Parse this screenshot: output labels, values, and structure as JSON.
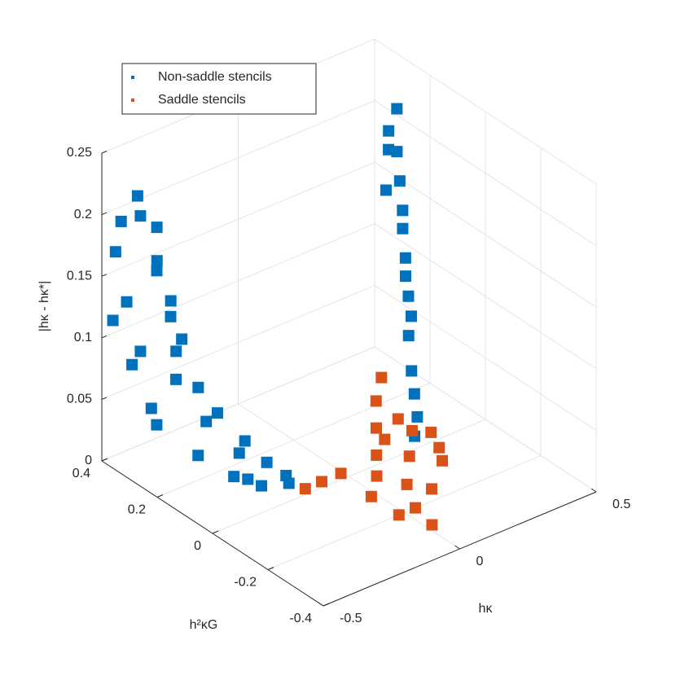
{
  "chart_data": {
    "type": "scatter3d",
    "xlabel": "hκ",
    "ylabel": "h²κG",
    "zlabel": "|hκ - hκ*|",
    "xlim": [
      -0.5,
      0.5
    ],
    "xticks": [
      -0.5,
      0,
      0.5
    ],
    "ylim": [
      -0.4,
      0.4
    ],
    "yticks": [
      -0.4,
      -0.2,
      0,
      0.2,
      0.4
    ],
    "zlim": [
      0,
      0.25
    ],
    "zticks": [
      0,
      0.05,
      0.1,
      0.15,
      0.2,
      0.25
    ],
    "grid": true,
    "legend": "upper left",
    "series": [
      {
        "name": "Non-saddle stencils",
        "color": "#0072BD",
        "x": [
          -0.48,
          -0.46,
          -0.44,
          -0.42,
          -0.47,
          -0.49,
          -0.5,
          -0.45,
          -0.43,
          -0.46,
          -0.4,
          -0.41,
          -0.38,
          -0.44,
          -0.37,
          -0.35,
          -0.42,
          -0.33,
          -0.3,
          -0.38,
          -0.28,
          -0.32,
          -0.25,
          -0.27,
          -0.22,
          -0.2,
          -0.18,
          -0.3,
          -0.35,
          -0.4,
          0.48,
          0.47,
          0.46,
          0.45,
          0.44,
          0.42,
          0.41,
          0.39,
          0.37,
          0.35,
          0.32,
          0.29,
          0.26,
          0.23,
          0.2,
          0.49,
          0.43
        ],
        "y": [
          0.35,
          0.3,
          0.33,
          0.28,
          0.38,
          0.32,
          0.36,
          0.25,
          0.22,
          0.3,
          0.3,
          0.2,
          0.25,
          0.35,
          0.18,
          0.28,
          0.3,
          0.15,
          0.22,
          0.32,
          0.1,
          0.05,
          0.15,
          0.05,
          0.08,
          0.02,
          0.05,
          0.12,
          0.2,
          0.25,
          0.3,
          0.32,
          0.28,
          0.26,
          0.24,
          0.22,
          0.2,
          0.18,
          0.15,
          0.12,
          0.1,
          0.06,
          0.02,
          -0.02,
          -0.04,
          0.34,
          0.29
        ],
        "z": [
          0.2,
          0.21,
          0.22,
          0.2,
          0.17,
          0.14,
          0.12,
          0.18,
          0.15,
          0.1,
          0.16,
          0.12,
          0.1,
          0.08,
          0.08,
          0.07,
          0.05,
          0.06,
          0.04,
          0.03,
          0.04,
          0.02,
          0.02,
          0.01,
          0.02,
          0.01,
          0.01,
          0.01,
          0.02,
          0.13,
          0.21,
          0.19,
          0.18,
          0.16,
          0.14,
          0.13,
          0.11,
          0.1,
          0.09,
          0.08,
          0.07,
          0.05,
          0.04,
          0.03,
          0.02,
          0.17,
          0.15
        ]
      },
      {
        "name": "Saddle stencils",
        "color": "#D95319",
        "x": [
          0.2,
          0.15,
          0.1,
          0.05,
          0,
          -0.05,
          -0.1,
          -0.14,
          0.18,
          0.12,
          0.06,
          0.02,
          0.02,
          -0.04,
          0.1,
          0.25,
          0.3,
          0.15,
          0.08,
          -0.02,
          0.22
        ],
        "y": [
          0.08,
          0.05,
          0,
          -0.05,
          -0.1,
          -0.02,
          0,
          0.02,
          0,
          -0.1,
          -0.15,
          -0.22,
          -0.28,
          -0.12,
          -0.2,
          -0.05,
          -0.03,
          -0.08,
          -0.05,
          -0.2,
          -0.12
        ],
        "z": [
          0.05,
          0.04,
          0.03,
          0.02,
          0.015,
          0.01,
          0.005,
          0,
          0.03,
          0.02,
          0.01,
          0.005,
          0,
          0.005,
          0.01,
          0.02,
          0,
          0.035,
          0.03,
          0,
          0.01
        ]
      }
    ]
  }
}
